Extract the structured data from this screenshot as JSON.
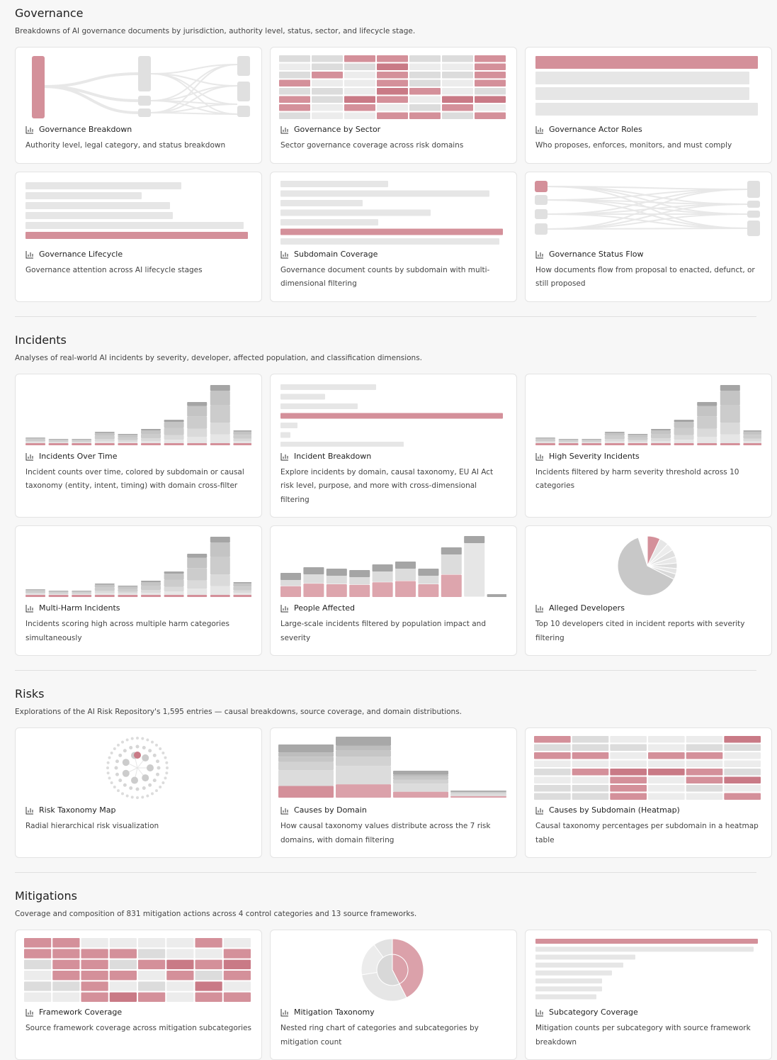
{
  "sections": [
    {
      "title": "Governance",
      "description": "Breakdowns of AI governance documents by jurisdiction, authority level, status, sector, and lifecycle stage.",
      "cards": [
        {
          "title": "Governance Breakdown",
          "description": "Authority level, legal category, and status breakdown"
        },
        {
          "title": "Governance by Sector",
          "description": "Sector governance coverage across risk domains"
        },
        {
          "title": "Governance Actor Roles",
          "description": "Who proposes, enforces, monitors, and must comply"
        },
        {
          "title": "Governance Lifecycle",
          "description": "Governance attention across AI lifecycle stages"
        },
        {
          "title": "Subdomain Coverage",
          "description": "Governance document counts by subdomain with multi-dimensional filtering"
        },
        {
          "title": "Governance Status Flow",
          "description": "How documents flow from proposal to enacted, defunct, or still proposed"
        }
      ]
    },
    {
      "title": "Incidents",
      "description": "Analyses of real-world AI incidents by severity, developer, affected population, and classification dimensions.",
      "cards": [
        {
          "title": "Incidents Over Time",
          "description": "Incident counts over time, colored by subdomain or causal taxonomy (entity, intent, timing) with domain cross-filter"
        },
        {
          "title": "Incident Breakdown",
          "description": "Explore incidents by domain, causal taxonomy, EU AI Act risk level, purpose, and more with cross-dimensional filtering"
        },
        {
          "title": "High Severity Incidents",
          "description": "Incidents filtered by harm severity threshold across 10 categories"
        },
        {
          "title": "Multi-Harm Incidents",
          "description": "Incidents scoring high across multiple harm categories simultaneously"
        },
        {
          "title": "People Affected",
          "description": "Large-scale incidents filtered by population impact and severity"
        },
        {
          "title": "Alleged Developers",
          "description": "Top 10 developers cited in incident reports with severity filtering"
        }
      ]
    },
    {
      "title": "Risks",
      "description": "Explorations of the AI Risk Repository's 1,595 entries — causal breakdowns, source coverage, and domain distributions.",
      "cards": [
        {
          "title": "Risk Taxonomy Map",
          "description": "Radial hierarchical risk visualization"
        },
        {
          "title": "Causes by Domain",
          "description": "How causal taxonomy values distribute across the 7 risk domains, with domain filtering"
        },
        {
          "title": "Causes by Subdomain (Heatmap)",
          "description": "Causal taxonomy percentages per subdomain in a heatmap table"
        }
      ]
    },
    {
      "title": "Mitigations",
      "description": "Coverage and composition of 831 mitigation actions across 4 control categories and 13 source frameworks.",
      "cards": [
        {
          "title": "Framework Coverage",
          "description": "Source framework coverage across mitigation subcategories"
        },
        {
          "title": "Mitigation Taxonomy",
          "description": "Nested ring chart of categories and subcategories by mitigation count"
        },
        {
          "title": "Subcategory Coverage",
          "description": "Mitigation counts per subcategory with source framework breakdown"
        }
      ]
    }
  ]
}
